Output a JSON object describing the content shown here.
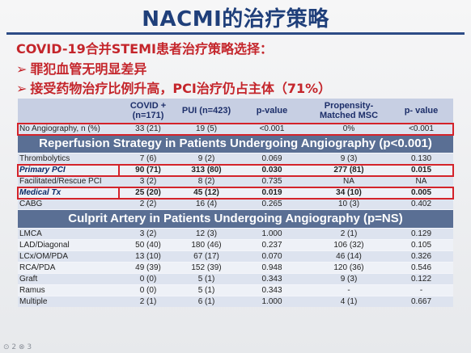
{
  "title": "NACMI的治疗策略",
  "subtitle": "COVID-19合并STEMI患者治疗策略选择：",
  "bullets": [
    "罪犯血管无明显差异",
    "接受药物治疗比例升高，PCI治疗仍占主体（71%）"
  ],
  "arrow_glyph": "➢",
  "table": {
    "headers": [
      "",
      "COVID + (n=171)",
      "PUI (n=423)",
      "p-value",
      "Propensity-Matched MSC",
      "p- value"
    ],
    "row_no_angio": [
      "No Angiography, n (%)",
      "33 (21)",
      "19 (5)",
      "<0.001",
      "0%",
      "<0.001"
    ],
    "section_reperfusion": "Reperfusion Strategy in Patients Undergoing Angiography (p<0.001)",
    "reperfusion_rows": [
      [
        "Thrombolytics",
        "7 (6)",
        "9 (2)",
        "0.069",
        "9 (3)",
        "0.130"
      ],
      [
        "Primary PCI",
        "90 (71)",
        "313 (80)",
        "0.030",
        "277 (81)",
        "0.015"
      ],
      [
        "Facilitated/Rescue PCI",
        "3 (2)",
        "8 (2)",
        "0.735",
        "NA",
        "NA"
      ],
      [
        "Medical Tx",
        "25 (20)",
        "45 (12)",
        "0.019",
        "34 (10)",
        "0.005"
      ],
      [
        "CABG",
        "2 (2)",
        "16 (4)",
        "0.265",
        "10 (3)",
        "0.402"
      ]
    ],
    "section_culprit": "Culprit Artery in Patients Undergoing Angiography (p=NS)",
    "culprit_rows": [
      [
        "LMCA",
        "3 (2)",
        "12 (3)",
        "1.000",
        "2 (1)",
        "0.129"
      ],
      [
        "LAD/Diagonal",
        "50 (40)",
        "180 (46)",
        "0.237",
        "106 (32)",
        "0.105"
      ],
      [
        "LCx/OM/PDA",
        "13 (10)",
        "67 (17)",
        "0.070",
        "46 (14)",
        "0.326"
      ],
      [
        "RCA/PDA",
        "49 (39)",
        "152 (39)",
        "0.948",
        "120 (36)",
        "0.546"
      ],
      [
        "Graft",
        "0 (0)",
        "5 (1)",
        "0.343",
        "9 (3)",
        "0.122"
      ],
      [
        "Ramus",
        "0 (0)",
        "5 (1)",
        "0.343",
        "-",
        "-"
      ],
      [
        "Multiple",
        "2 (1)",
        "6 (1)",
        "1.000",
        "4 (1)",
        "0.667"
      ]
    ]
  },
  "footer": "⊙ 2 ⊗ 3",
  "colors": {
    "title": "#1f3f7a",
    "accent_red": "#c4252b",
    "highlight_box": "#d4232a",
    "section_bar": "#5a6f94"
  }
}
